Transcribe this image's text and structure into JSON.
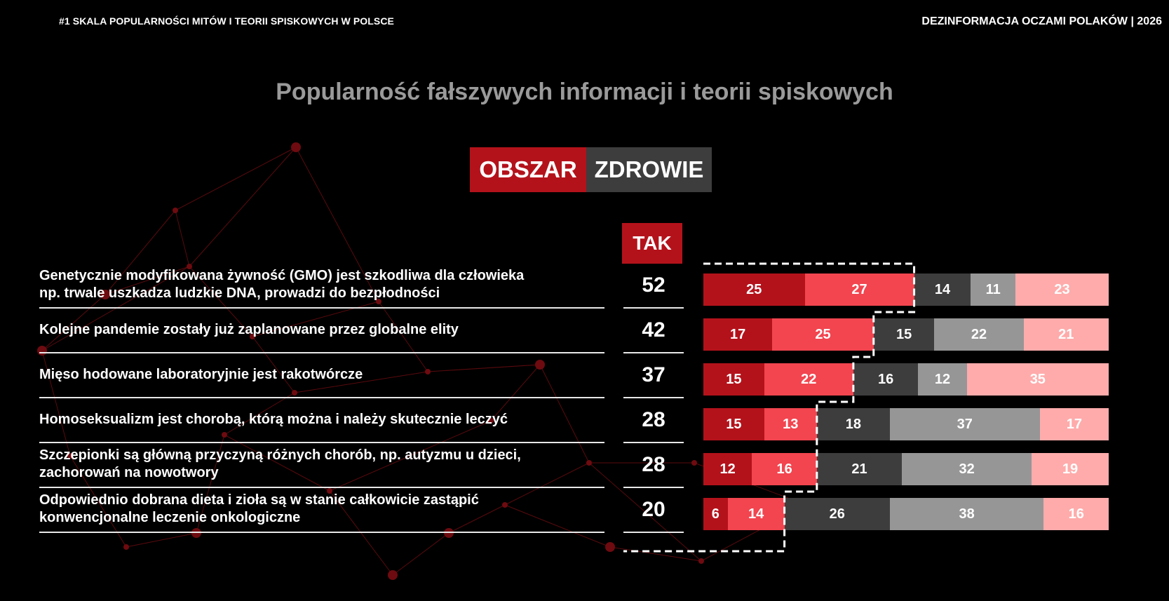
{
  "header": {
    "left": "#1 SKALA POPULARNOŚCI MITÓW I TEORII SPISKOWYCH W POLSCE",
    "right": "DEZINFORMACJA OCZAMI POLAKÓW | 2026"
  },
  "area": {
    "label": "OBSZAR",
    "value": "ZDROWIE"
  },
  "colors": {
    "seg1": "#b4121b",
    "seg2": "#f2454f",
    "seg3": "#3d3d3d",
    "seg4": "#969696",
    "seg5": "#ffabab"
  },
  "chart_data": {
    "type": "bar",
    "orientation": "horizontal-stacked-100",
    "title": "Popularność fałszywych informacji i teorii spiskowych",
    "tak_header": "TAK",
    "categories": [
      [
        "Genetycznie modyfikowana żywność (GMO) jest szkodliwa dla człowieka",
        "np. trwale uszkadza ludzkie DNA, prowadzi do bezpłodności"
      ],
      [
        "Kolejne pandemie zostały już zaplanowane przez globalne elity"
      ],
      [
        "Mięso hodowane laboratoryjnie jest rakotwórcze"
      ],
      [
        "Homoseksualizm jest chorobą, którą można i należy skutecznie leczyć"
      ],
      [
        "Szczepionki są główną przyczyną różnych chorób, np. autyzmu u dzieci,",
        "zachorowań na nowotwory"
      ],
      [
        "Odpowiednio dobrana dieta i zioła są w stanie całkowicie zastąpić",
        "konwencjonalne leczenie onkologiczne"
      ]
    ],
    "tak": [
      52,
      42,
      37,
      28,
      28,
      20
    ],
    "segments": [
      [
        25,
        27,
        14,
        11,
        23
      ],
      [
        17,
        25,
        15,
        22,
        21
      ],
      [
        15,
        22,
        16,
        12,
        35
      ],
      [
        15,
        13,
        18,
        37,
        17
      ],
      [
        12,
        16,
        21,
        32,
        19
      ],
      [
        6,
        14,
        26,
        38,
        16
      ]
    ]
  }
}
